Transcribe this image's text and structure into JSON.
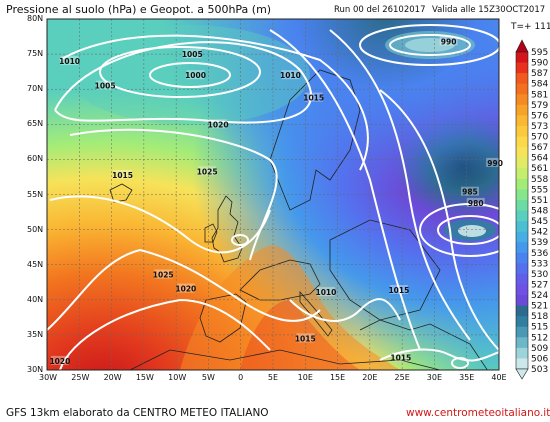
{
  "header": {
    "title": "Pressione al suolo (hPa) e Geopot. a 500hPa (m)",
    "run": "Run 00 del 26102017",
    "valid": "Valida alle 15Z30OCT2017",
    "timestep": "T=+ 111"
  },
  "footer": {
    "model": "GFS 13km elaborato da CENTRO METEO ITALIANO",
    "website": "www.centrometeoitaliano.it"
  },
  "axes": {
    "lat_labels": [
      "80N",
      "75N",
      "70N",
      "65N",
      "60N",
      "55N",
      "50N",
      "45N",
      "40N",
      "35N",
      "30N"
    ],
    "lon_labels": [
      "30W",
      "25W",
      "20W",
      "15W",
      "10W",
      "5W",
      "0",
      "5E",
      "10E",
      "15E",
      "20E",
      "25E",
      "30E",
      "35E",
      "40E"
    ]
  },
  "legend": {
    "levels": [
      595,
      590,
      587,
      584,
      581,
      579,
      576,
      573,
      570,
      567,
      564,
      561,
      558,
      555,
      551,
      548,
      545,
      542,
      539,
      536,
      533,
      530,
      527,
      524,
      521,
      518,
      515,
      512,
      509,
      506,
      503
    ],
    "colors": [
      "#b40019",
      "#d4161c",
      "#e8321e",
      "#f05a1e",
      "#f2701f",
      "#f58a24",
      "#f7a229",
      "#fab733",
      "#fcc93d",
      "#fcd94a",
      "#f6e35a",
      "#e2eb66",
      "#c4ee6c",
      "#a4ec78",
      "#86e68c",
      "#6cdca4",
      "#5acfbd",
      "#4cc0d2",
      "#46aee2",
      "#4598ec",
      "#4a82ef",
      "#5570ee",
      "#625eea",
      "#6f52e4",
      "#6c4ad8",
      "#2c6a8e",
      "#327ea0",
      "#4a98b4",
      "#6cb8c8",
      "#9cd4da",
      "#cde8ea"
    ]
  },
  "isobars": [
    {
      "value": "990",
      "lon": 32.2,
      "lat": 76.8
    },
    {
      "value": "1010",
      "lon": -26.5,
      "lat": 74.0
    },
    {
      "value": "1005",
      "lon": -7.5,
      "lat": 75.0
    },
    {
      "value": "1000",
      "lon": -7.0,
      "lat": 72.0
    },
    {
      "value": "1005",
      "lon": -21.0,
      "lat": 70.5
    },
    {
      "value": "1010",
      "lon": 7.7,
      "lat": 72.0
    },
    {
      "value": "1015",
      "lon": 11.3,
      "lat": 68.8
    },
    {
      "value": "1020",
      "lon": -3.5,
      "lat": 65.0
    },
    {
      "value": "1015",
      "lon": -18.3,
      "lat": 57.8
    },
    {
      "value": "1025",
      "lon": -5.2,
      "lat": 58.3
    },
    {
      "value": "990",
      "lon": 39.4,
      "lat": 59.5
    },
    {
      "value": "985",
      "lon": 35.5,
      "lat": 55.4
    },
    {
      "value": "980",
      "lon": 36.4,
      "lat": 53.8
    },
    {
      "value": "1025",
      "lon": -12.0,
      "lat": 43.6
    },
    {
      "value": "1020",
      "lon": -8.5,
      "lat": 41.6
    },
    {
      "value": "1010",
      "lon": 13.2,
      "lat": 41.1
    },
    {
      "value": "1015",
      "lon": 24.5,
      "lat": 41.4
    },
    {
      "value": "1015",
      "lon": 10.0,
      "lat": 34.5
    },
    {
      "value": "1015",
      "lon": 24.8,
      "lat": 31.8
    },
    {
      "value": "1020",
      "lon": -28.0,
      "lat": 31.3
    }
  ]
}
